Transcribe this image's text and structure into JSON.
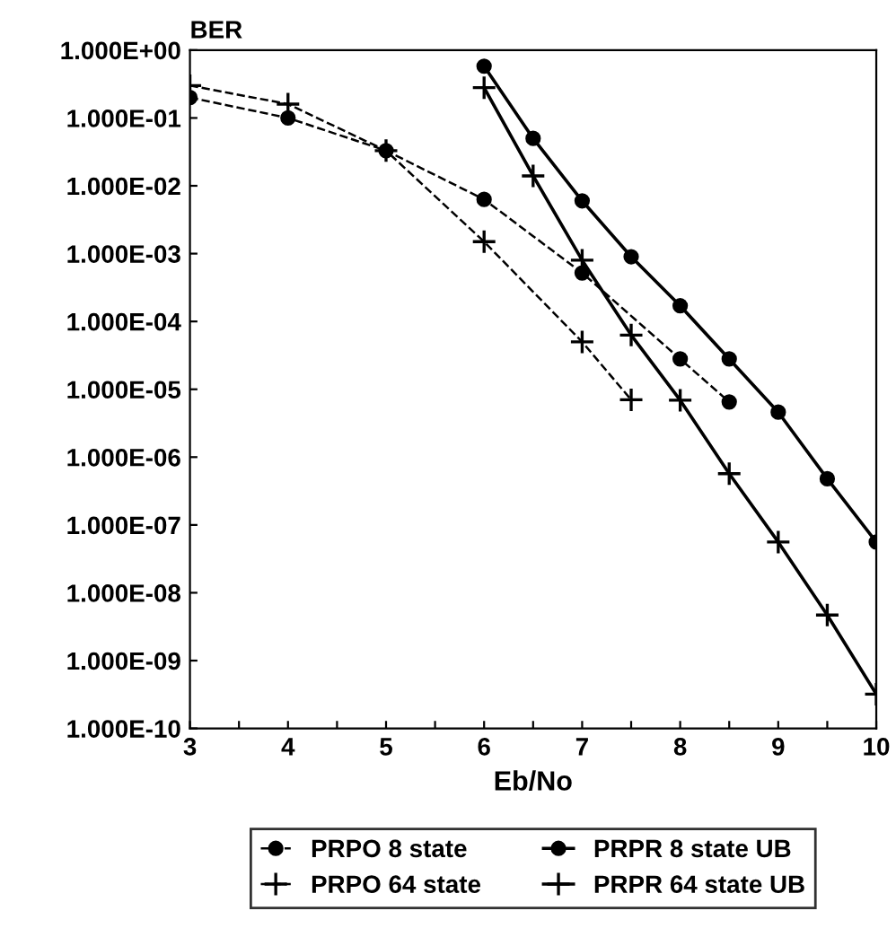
{
  "chart_data": {
    "type": "line",
    "xlabel": "Eb/No",
    "ylabel": "BER",
    "log": "y",
    "xlim": [
      3,
      10
    ],
    "xticks": [
      3,
      {
        "value": 3.5,
        "label": null
      },
      4,
      {
        "value": 4.5,
        "label": null
      },
      5,
      {
        "value": 5.5,
        "label": null
      },
      6,
      {
        "value": 6.5,
        "label": null
      },
      7,
      {
        "value": 7.5,
        "label": null
      },
      8,
      {
        "value": 8.5,
        "label": null
      },
      9,
      {
        "value": 9.5,
        "label": null
      },
      10
    ],
    "ylim": [
      1e-10,
      1
    ],
    "yticks": [
      {
        "value": 1,
        "label": "1.000E+00"
      },
      {
        "value": 0.1,
        "label": "1.000E-01"
      },
      {
        "value": 0.01,
        "label": "1.000E-02"
      },
      {
        "value": 0.001,
        "label": "1.000E-03"
      },
      {
        "value": 0.0001,
        "label": "1.000E-04"
      },
      {
        "value": 1e-05,
        "label": "1.000E-05"
      },
      {
        "value": 1e-06,
        "label": "1.000E-06"
      },
      {
        "value": 1e-07,
        "label": "1.000E-07"
      },
      {
        "value": 1e-08,
        "label": "1.000E-08"
      },
      {
        "value": 1e-09,
        "label": "1.000E-09"
      },
      {
        "value": 1e-10,
        "label": "1.000E-10"
      }
    ],
    "grid": false,
    "legend": "bottom",
    "series": [
      {
        "name": "PRPO 8 state",
        "color": "#000000",
        "marker": "circle",
        "line_style": "dashed",
        "x": [
          3,
          4,
          5,
          6,
          7,
          8,
          8.5
        ],
        "values": [
          0.2,
          0.1,
          0.033,
          0.0063,
          0.00052,
          2.8e-05,
          6.5e-06
        ]
      },
      {
        "name": "PRPO 64 state",
        "color": "#000000",
        "marker": "cross",
        "line_style": "dashed",
        "x": [
          3,
          4,
          5,
          6,
          7,
          7.5
        ],
        "values": [
          0.3,
          0.16,
          0.033,
          0.0015,
          5e-05,
          7e-06
        ]
      },
      {
        "name": "PRPR 8 state UB",
        "color": "#000000",
        "marker": "circle",
        "line_style": "solid",
        "x": [
          6,
          6.5,
          7,
          7.5,
          8,
          8.5,
          9,
          9.5,
          10
        ],
        "values": [
          0.58,
          0.05,
          0.006,
          0.0009,
          0.00017,
          2.8e-05,
          4.6e-06,
          4.8e-07,
          5.6e-08
        ]
      },
      {
        "name": "PRPR 64 state UB",
        "color": "#000000",
        "marker": "cross",
        "line_style": "solid",
        "x": [
          6,
          6.5,
          7,
          7.5,
          8,
          8.5,
          9,
          9.5,
          10
        ],
        "values": [
          0.28,
          0.014,
          0.0008,
          6.3e-05,
          6.9e-06,
          5.7e-07,
          5.6e-08,
          4.7e-09,
          3.2e-10
        ]
      }
    ]
  }
}
